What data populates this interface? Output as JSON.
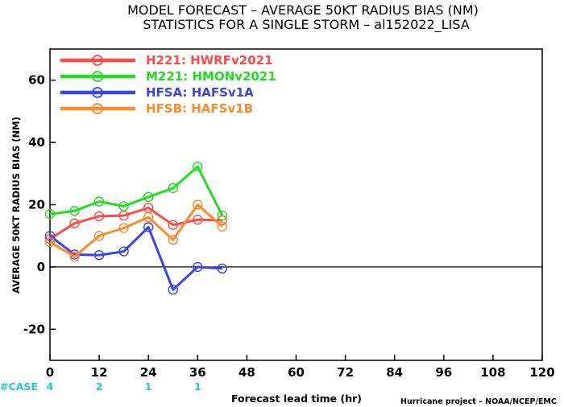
{
  "title_line1": "MODEL FORECAST – AVERAGE 50KT RADIUS BIAS (NM)",
  "title_line2": "STATISTICS FOR A SINGLE STORM – al152022_LISA",
  "credit": "Hurricane project – NOAA/NCEP/EMC",
  "case_label": "#CASE",
  "case_counts": [
    {
      "x": 0,
      "label": "4"
    },
    {
      "x": 12,
      "label": "2"
    },
    {
      "x": 24,
      "label": "1"
    },
    {
      "x": 36,
      "label": "1"
    }
  ],
  "colors": {
    "case": "#26c6cc",
    "zero_line": "#000000"
  },
  "chart_data": {
    "type": "line",
    "xlabel": "Forecast lead time (hr)",
    "ylabel": "AVERAGE 50KT RADIUS BIAS (NM)",
    "xlim": [
      0,
      120
    ],
    "ylim": [
      -30,
      70
    ],
    "x_ticks": [
      0,
      12,
      24,
      36,
      48,
      60,
      72,
      84,
      96,
      108,
      120
    ],
    "y_ticks": [
      -20,
      0,
      20,
      40,
      60
    ],
    "x": [
      0,
      6,
      12,
      18,
      24,
      30,
      36,
      42
    ],
    "legend_position": "top-left",
    "grid": false,
    "series": [
      {
        "name": "H221: HWRFv2021",
        "color": "#ff4a4a",
        "values": [
          9,
          14,
          16.3,
          16.5,
          19,
          13.5,
          15.2,
          15
        ]
      },
      {
        "name": "M221: HMONv2021",
        "color": "#22dd22",
        "values": [
          17,
          18,
          21,
          19.5,
          22.5,
          25.3,
          32.2,
          16.5
        ]
      },
      {
        "name": "HFSA: HAFSv1A",
        "color": "#3b44e6",
        "values": [
          10,
          4,
          3.8,
          5,
          12.8,
          -7.3,
          0,
          -0.5
        ]
      },
      {
        "name": "HFSB: HAFSv1B",
        "color": "#ff8a2a",
        "values": [
          8,
          3.3,
          10,
          12.5,
          16,
          8.7,
          20,
          13
        ]
      }
    ]
  }
}
